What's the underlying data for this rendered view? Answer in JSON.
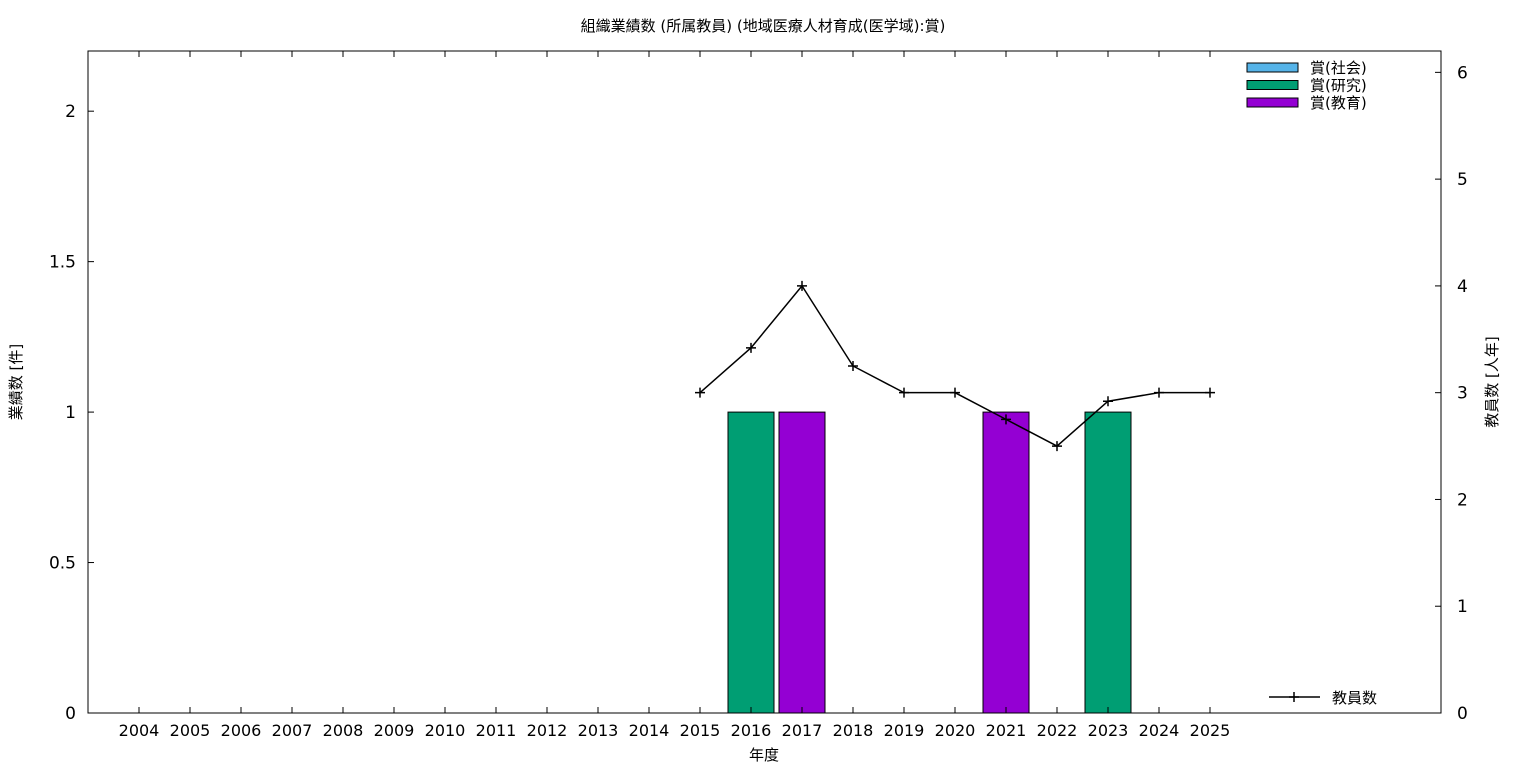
{
  "chart_data": {
    "type": "bar",
    "title": "組織業績数 (所属教員) (地域医療人材育成(医学域):賞)",
    "xlabel": "年度",
    "ylabel": "業績数 [件]",
    "y2label": "教員数 [人年]",
    "categories": [
      "2004",
      "2005",
      "2006",
      "2007",
      "2008",
      "2009",
      "2010",
      "2011",
      "2012",
      "2013",
      "2014",
      "2015",
      "2016",
      "2017",
      "2018",
      "2019",
      "2020",
      "2021",
      "2022",
      "2023",
      "2024",
      "2025"
    ],
    "ylim": [
      0,
      2.2
    ],
    "yticks": [
      0,
      0.5,
      1,
      1.5,
      2
    ],
    "ytick_labels": [
      "0",
      "0.5",
      "1",
      "1.5",
      "2"
    ],
    "y2lim": [
      0,
      6.2
    ],
    "y2ticks": [
      0,
      1,
      2,
      3,
      4,
      5,
      6
    ],
    "series": [
      {
        "name": "賞(社会)",
        "color": "#56b4e9",
        "values": [
          0,
          0,
          0,
          0,
          0,
          0,
          0,
          0,
          0,
          0,
          0,
          0,
          0,
          0,
          0,
          0,
          0,
          0,
          0,
          0,
          0,
          0
        ]
      },
      {
        "name": "賞(研究)",
        "color": "#009e73",
        "values": [
          0,
          0,
          0,
          0,
          0,
          0,
          0,
          0,
          0,
          0,
          0,
          0,
          1,
          0,
          0,
          0,
          0,
          0,
          0,
          1,
          0,
          0
        ]
      },
      {
        "name": "賞(教育)",
        "color": "#9400d3",
        "values": [
          0,
          0,
          0,
          0,
          0,
          0,
          0,
          0,
          0,
          0,
          0,
          0,
          0,
          1,
          0,
          0,
          0,
          1,
          0,
          0,
          0,
          0
        ]
      }
    ],
    "line_series": {
      "name": "教員数",
      "axis": "y2",
      "color": "#000000",
      "x": [
        "2015",
        "2016",
        "2017",
        "2018",
        "2019",
        "2020",
        "2021",
        "2022",
        "2023",
        "2024",
        "2025"
      ],
      "values": [
        3.0,
        3.42,
        4.0,
        3.25,
        3.0,
        3.0,
        2.75,
        2.5,
        2.92,
        3.0,
        3.0
      ]
    },
    "legend_position": "top-right",
    "line_legend_position": "bottom-right",
    "grid": false
  }
}
